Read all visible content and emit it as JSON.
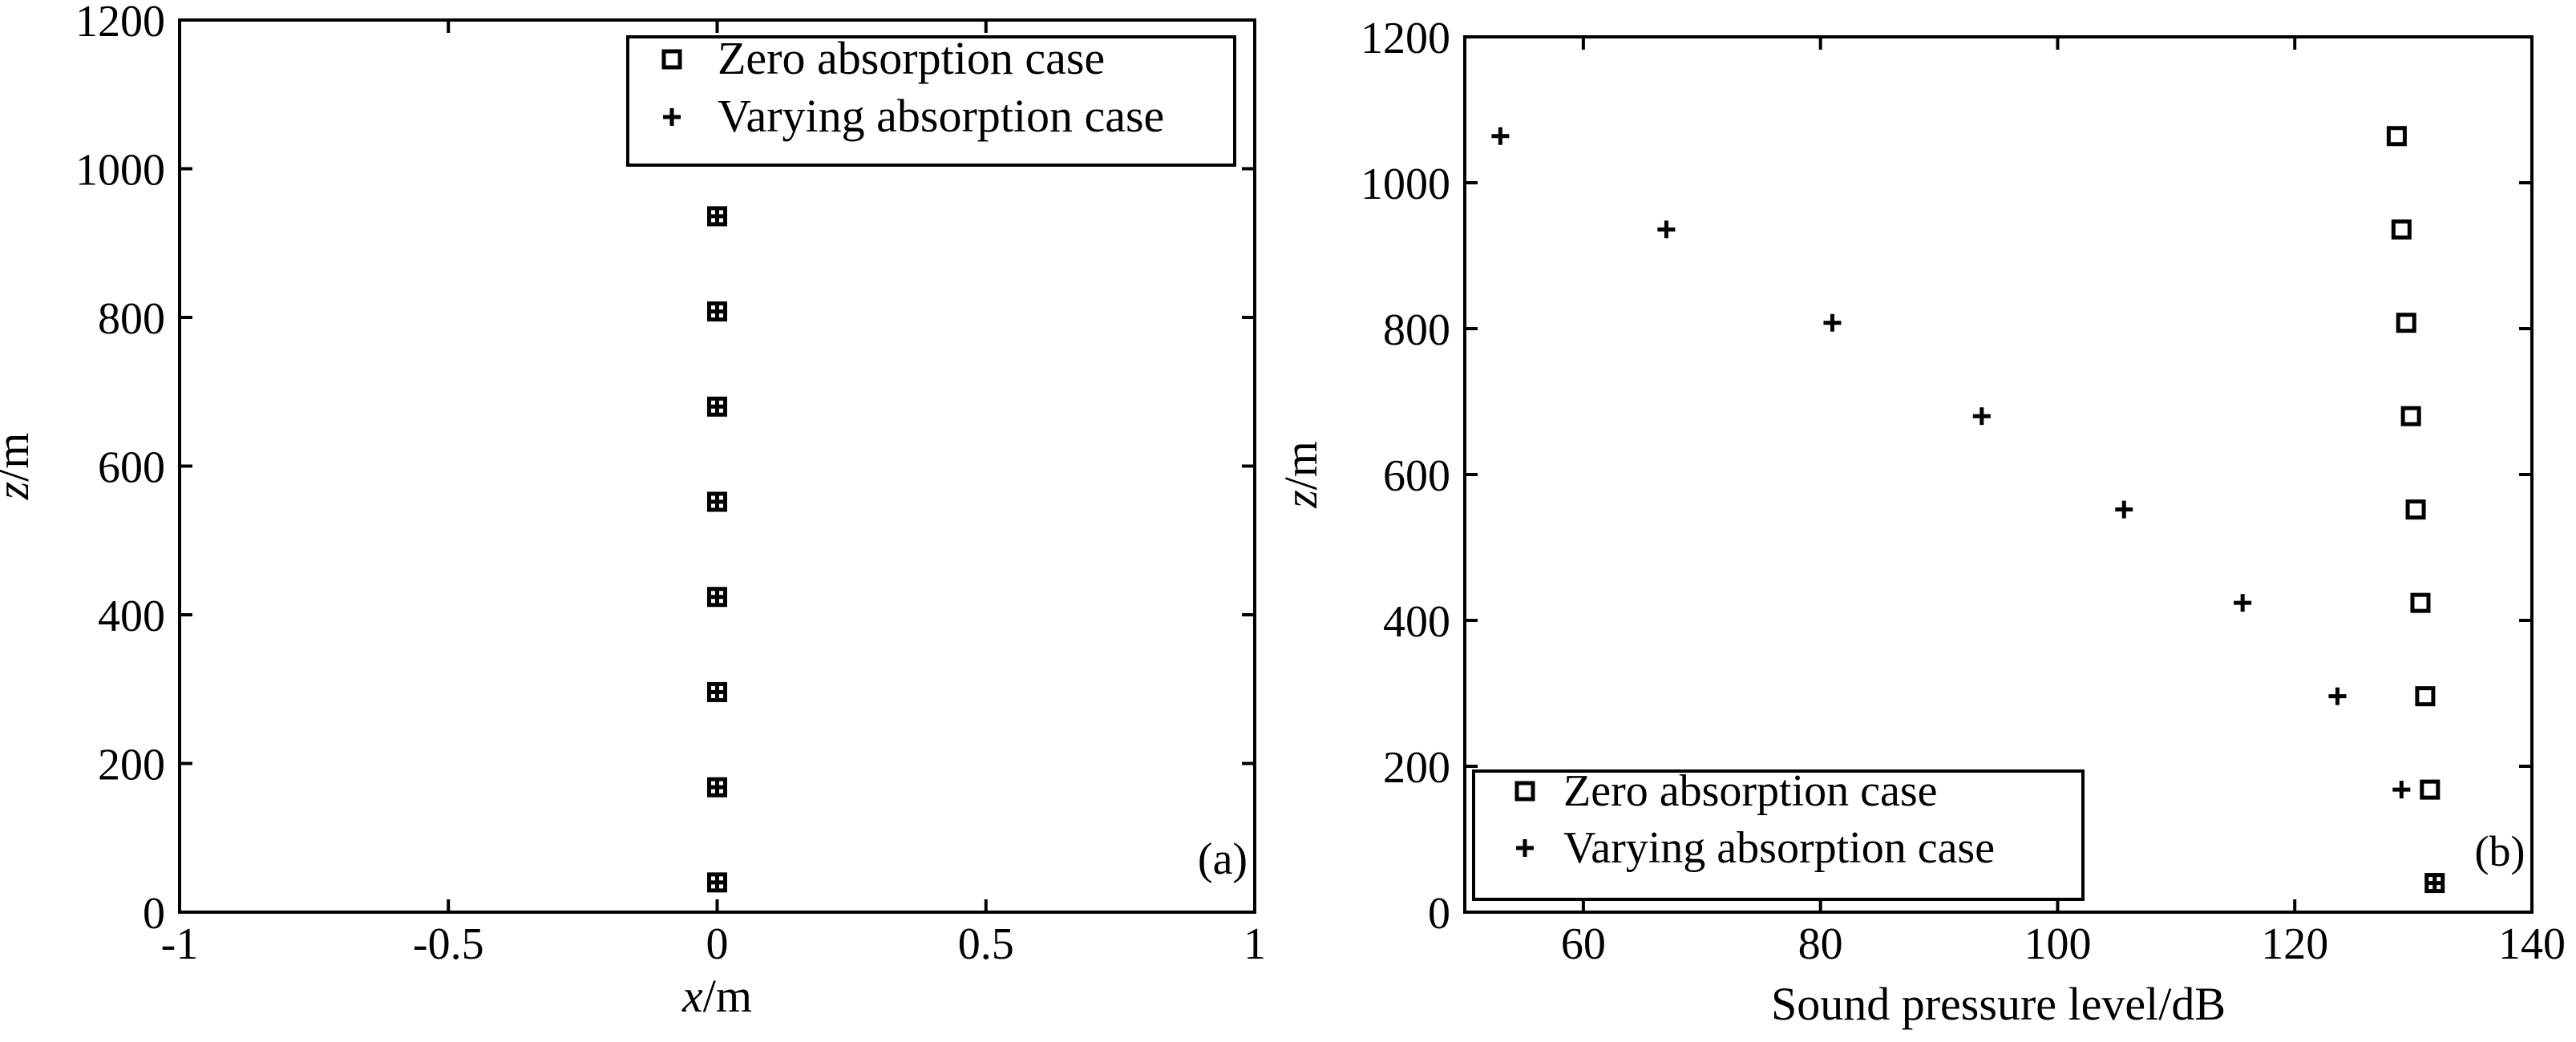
{
  "chart_data": [
    {
      "type": "scatter",
      "panel_label": "(a)",
      "xlabel": {
        "var": "x",
        "unit": "/m"
      },
      "ylabel": {
        "var": "z",
        "unit": "/m"
      },
      "xlim": [
        -1,
        1
      ],
      "ylim": [
        0,
        1200
      ],
      "xticks": [
        -1,
        -0.5,
        0,
        0.5,
        1
      ],
      "xtick_labels": [
        "-1",
        "-0.5",
        "0",
        "0.5",
        "1"
      ],
      "yticks": [
        0,
        200,
        400,
        600,
        800,
        1000,
        1200
      ],
      "ytick_labels": [
        "0",
        "200",
        "400",
        "600",
        "800",
        "1000",
        "1200"
      ],
      "grid": false,
      "legend_position": "top-right",
      "series": [
        {
          "name": "Zero absorption case",
          "marker": "square",
          "x": [
            0,
            0,
            0,
            0,
            0,
            0,
            0,
            0
          ],
          "y": [
            40,
            168,
            296,
            424,
            552,
            680,
            808,
            936
          ]
        },
        {
          "name": "Varying absorption case",
          "marker": "plus",
          "x": [
            0,
            0,
            0,
            0,
            0,
            0,
            0,
            0
          ],
          "y": [
            40,
            168,
            296,
            424,
            552,
            680,
            808,
            936
          ]
        }
      ]
    },
    {
      "type": "scatter",
      "panel_label": "(b)",
      "xlabel": {
        "var": "",
        "unit": "Sound pressure level/dB"
      },
      "ylabel": {
        "var": "z",
        "unit": "/m"
      },
      "xlim": [
        50,
        140
      ],
      "ylim": [
        0,
        1200
      ],
      "xticks": [
        60,
        80,
        100,
        120,
        140
      ],
      "xtick_labels": [
        "60",
        "80",
        "100",
        "120",
        "140"
      ],
      "yticks": [
        0,
        200,
        400,
        600,
        800,
        1000,
        1200
      ],
      "ytick_labels": [
        "0",
        "200",
        "400",
        "600",
        "800",
        "1000",
        "1200"
      ],
      "grid": false,
      "legend_position": "bottom-left",
      "series": [
        {
          "name": "Zero absorption case",
          "marker": "square",
          "x": [
            131.8,
            131.4,
            131.0,
            130.6,
            130.2,
            129.8,
            129.4,
            129.0,
            128.6
          ],
          "y": [
            40,
            168,
            296,
            424,
            552,
            680,
            808,
            936,
            1064
          ]
        },
        {
          "name": "Varying absorption case",
          "marker": "plus",
          "x": [
            131.8,
            129.0,
            123.6,
            115.6,
            105.6,
            93.6,
            81.0,
            67.0,
            53.0
          ],
          "y": [
            40,
            168,
            296,
            424,
            552,
            680,
            808,
            936,
            1064
          ]
        }
      ]
    }
  ]
}
